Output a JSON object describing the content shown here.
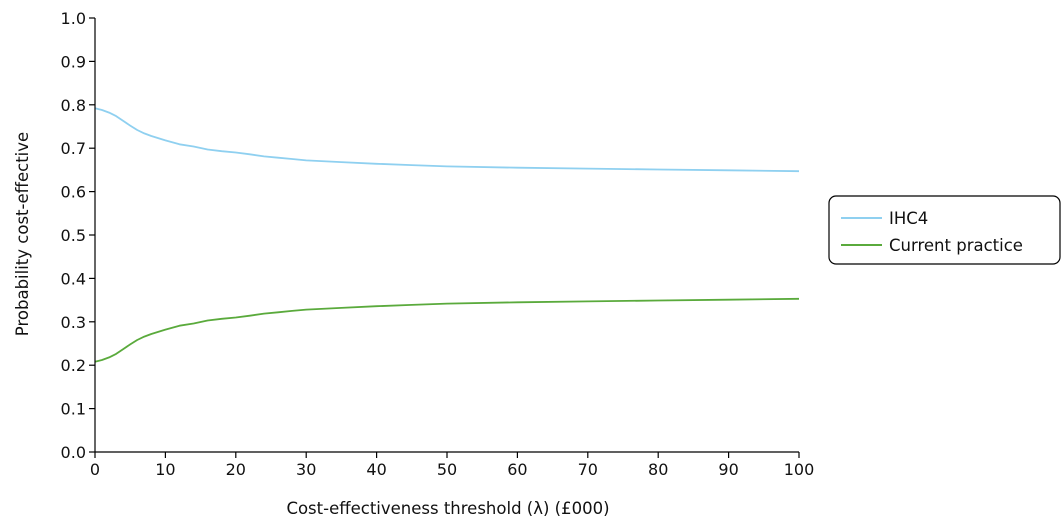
{
  "chart_data": {
    "type": "line",
    "title": "",
    "xlabel": "Cost-effectiveness threshold (λ) (£000)",
    "ylabel": "Probability cost-effective",
    "xlim": [
      0,
      100
    ],
    "ylim": [
      0,
      1.0
    ],
    "x_ticks": [
      0,
      10,
      20,
      30,
      40,
      50,
      60,
      70,
      80,
      90,
      100
    ],
    "x_tick_labels": [
      "0",
      "10",
      "20",
      "30",
      "40",
      "50",
      "60",
      "70",
      "80",
      "90",
      "100"
    ],
    "y_ticks": [
      0,
      0.1,
      0.2,
      0.3,
      0.4,
      0.5,
      0.6,
      0.7,
      0.8,
      0.9,
      1.0
    ],
    "y_tick_labels": [
      "0.0",
      "0.1",
      "0.2",
      "0.3",
      "0.4",
      "0.5",
      "0.6",
      "0.7",
      "0.8",
      "0.9",
      "1.0"
    ],
    "grid": false,
    "legend_position": "right",
    "series": [
      {
        "name": "IHC4",
        "color": "#8fd0f0",
        "x": [
          0,
          1,
          2,
          3,
          4,
          5,
          6,
          7,
          8,
          10,
          12,
          14,
          16,
          18,
          20,
          22,
          24,
          26,
          28,
          30,
          35,
          40,
          45,
          50,
          60,
          70,
          80,
          90,
          100
        ],
        "y": [
          0.792,
          0.788,
          0.782,
          0.774,
          0.763,
          0.752,
          0.742,
          0.734,
          0.728,
          0.718,
          0.709,
          0.704,
          0.697,
          0.693,
          0.69,
          0.686,
          0.681,
          0.678,
          0.675,
          0.672,
          0.668,
          0.664,
          0.661,
          0.658,
          0.655,
          0.653,
          0.651,
          0.649,
          0.647
        ]
      },
      {
        "name": "Current practice",
        "color": "#5aaa3c",
        "x": [
          0,
          1,
          2,
          3,
          4,
          5,
          6,
          7,
          8,
          10,
          12,
          14,
          16,
          18,
          20,
          22,
          24,
          26,
          28,
          30,
          35,
          40,
          45,
          50,
          60,
          70,
          80,
          90,
          100
        ],
        "y": [
          0.208,
          0.212,
          0.218,
          0.226,
          0.237,
          0.248,
          0.258,
          0.266,
          0.272,
          0.282,
          0.291,
          0.296,
          0.303,
          0.307,
          0.31,
          0.314,
          0.319,
          0.322,
          0.325,
          0.328,
          0.332,
          0.336,
          0.339,
          0.342,
          0.345,
          0.347,
          0.349,
          0.351,
          0.353
        ]
      }
    ]
  }
}
